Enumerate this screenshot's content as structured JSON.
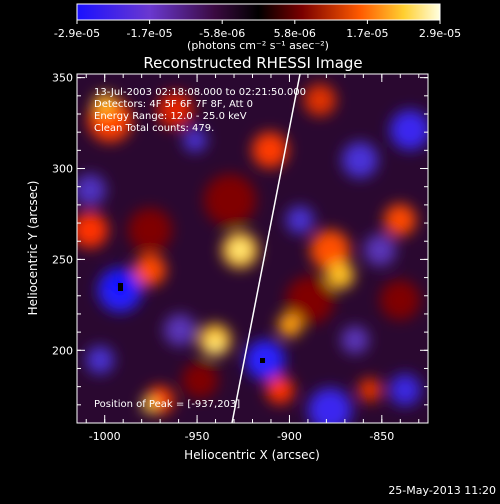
{
  "colorbar": {
    "ticks": [
      "-2.9e-05",
      "-1.7e-05",
      "-5.8e-06",
      "5.8e-06",
      "1.7e-05",
      "2.9e-05"
    ],
    "unit_label": "(photons cm⁻² s⁻¹ asec⁻²)",
    "colors": [
      "#1a10ff",
      "#7a3cc0",
      "#3a0a40",
      "#7a0000",
      "#ff5a00",
      "#ffffe0"
    ]
  },
  "image": {
    "title": "Reconstructed RHESSI Image",
    "info_lines": [
      "13-Jul-2003 02:18:08.000 to 02:21:50.000",
      "Detectors: 4F 5F 6F 7F 8F, Att 0",
      "Energy Range: 12.0 - 25.0 keV",
      "Clean     Total counts: 479."
    ],
    "peak_label": "Position of Peak = [-937,203]"
  },
  "axes": {
    "xlabel": "Heliocentric X (arcsec)",
    "ylabel": "Heliocentric Y (arcsec)",
    "xlim": [
      -1015,
      -825
    ],
    "ylim": [
      160,
      352
    ],
    "xticks": [
      "-1000",
      "-950",
      "-900",
      "-850"
    ],
    "xtick_values": [
      -1000,
      -950,
      -900,
      -850
    ],
    "yticks": [
      "200",
      "250",
      "300",
      "350"
    ],
    "ytick_values": [
      200,
      250,
      300,
      350
    ]
  },
  "footer": {
    "timestamp": "25-May-2013 11:20"
  }
}
